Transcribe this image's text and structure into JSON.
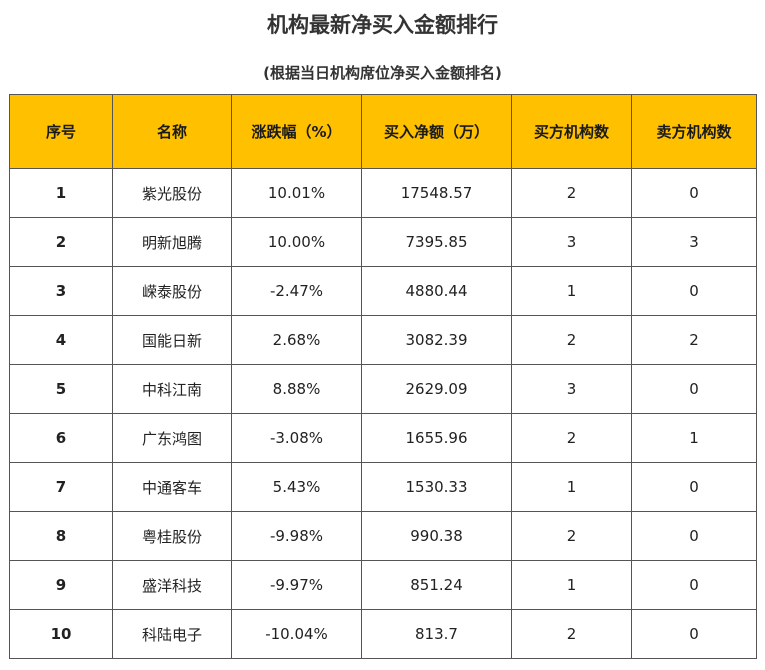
{
  "header": {
    "title": "机构最新净买入金额排行",
    "subtitle": "(根据当日机构席位净买入金额排名)"
  },
  "colors": {
    "header_bg": "#FFC000",
    "border": "#555555"
  },
  "table": {
    "columns": [
      "序号",
      "名称",
      "涨跌幅（%）",
      "买入净额（万）",
      "买方机构数",
      "卖方机构数"
    ],
    "rows": [
      [
        "1",
        "紫光股份",
        "10.01%",
        "17548.57",
        "2",
        "0"
      ],
      [
        "2",
        "明新旭腾",
        "10.00%",
        "7395.85",
        "3",
        "3"
      ],
      [
        "3",
        "嵘泰股份",
        "-2.47%",
        "4880.44",
        "1",
        "0"
      ],
      [
        "4",
        "国能日新",
        "2.68%",
        "3082.39",
        "2",
        "2"
      ],
      [
        "5",
        "中科江南",
        "8.88%",
        "2629.09",
        "3",
        "0"
      ],
      [
        "6",
        "广东鸿图",
        "-3.08%",
        "1655.96",
        "2",
        "1"
      ],
      [
        "7",
        "中通客车",
        "5.43%",
        "1530.33",
        "1",
        "0"
      ],
      [
        "8",
        "粤桂股份",
        "-9.98%",
        "990.38",
        "2",
        "0"
      ],
      [
        "9",
        "盛洋科技",
        "-9.97%",
        "851.24",
        "1",
        "0"
      ],
      [
        "10",
        "科陆电子",
        "-10.04%",
        "813.7",
        "2",
        "0"
      ]
    ]
  }
}
